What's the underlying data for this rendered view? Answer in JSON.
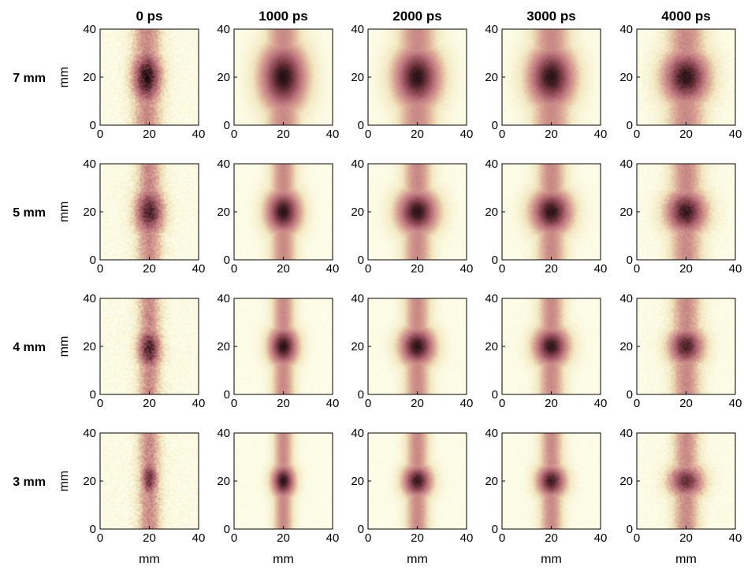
{
  "chart_data": {
    "type": "heatmap",
    "column_titles": [
      "0 ps",
      "1000 ps",
      "2000 ps",
      "3000 ps",
      "4000 ps"
    ],
    "row_labels": [
      "7 mm",
      "5 mm",
      "4 mm",
      "3 mm"
    ],
    "xlabel": "mm",
    "ylabel": "mm",
    "xlim": [
      0,
      40
    ],
    "ylim": [
      0,
      40
    ],
    "xticks": [
      0,
      20,
      40
    ],
    "yticks": [
      0,
      20,
      40
    ],
    "grid": false,
    "colormap": [
      "#fdfde8",
      "#f2e8c0",
      "#d9a593",
      "#b8707a",
      "#7a3b45",
      "#0f0608"
    ],
    "panels": [
      {
        "row": "7 mm",
        "col": "0 ps",
        "center": [
          19,
          20
        ],
        "stripe_width": 4.5,
        "blob_rx": 5,
        "blob_ry": 10,
        "peak": 0.97,
        "noise": 0.18
      },
      {
        "row": "7 mm",
        "col": "1000 ps",
        "center": [
          20,
          20
        ],
        "stripe_width": 5.5,
        "blob_rx": 8,
        "blob_ry": 12,
        "peak": 0.96,
        "noise": 0.03
      },
      {
        "row": "7 mm",
        "col": "2000 ps",
        "center": [
          20,
          20
        ],
        "stripe_width": 6,
        "blob_rx": 8,
        "blob_ry": 11,
        "peak": 0.95,
        "noise": 0.04
      },
      {
        "row": "7 mm",
        "col": "3000 ps",
        "center": [
          20,
          20
        ],
        "stripe_width": 6,
        "blob_rx": 8,
        "blob_ry": 11,
        "peak": 0.95,
        "noise": 0.05
      },
      {
        "row": "7 mm",
        "col": "4000 ps",
        "center": [
          20,
          20
        ],
        "stripe_width": 6,
        "blob_rx": 8,
        "blob_ry": 10,
        "peak": 0.95,
        "noise": 0.09
      },
      {
        "row": "5 mm",
        "col": "0 ps",
        "center": [
          20,
          20
        ],
        "stripe_width": 4,
        "blob_rx": 5,
        "blob_ry": 9,
        "peak": 0.9,
        "noise": 0.18
      },
      {
        "row": "5 mm",
        "col": "1000 ps",
        "center": [
          20,
          20
        ],
        "stripe_width": 4,
        "blob_rx": 6,
        "blob_ry": 8,
        "peak": 0.95,
        "noise": 0.03
      },
      {
        "row": "5 mm",
        "col": "2000 ps",
        "center": [
          20,
          20
        ],
        "stripe_width": 4.5,
        "blob_rx": 7,
        "blob_ry": 8,
        "peak": 0.95,
        "noise": 0.04
      },
      {
        "row": "5 mm",
        "col": "3000 ps",
        "center": [
          20,
          20
        ],
        "stripe_width": 4.5,
        "blob_rx": 7,
        "blob_ry": 8,
        "peak": 0.95,
        "noise": 0.05
      },
      {
        "row": "5 mm",
        "col": "4000 ps",
        "center": [
          20,
          20
        ],
        "stripe_width": 5,
        "blob_rx": 7,
        "blob_ry": 8,
        "peak": 0.93,
        "noise": 0.09
      },
      {
        "row": "4 mm",
        "col": "0 ps",
        "center": [
          20,
          19
        ],
        "stripe_width": 3.5,
        "blob_rx": 4,
        "blob_ry": 8,
        "peak": 0.9,
        "noise": 0.2
      },
      {
        "row": "4 mm",
        "col": "1000 ps",
        "center": [
          20,
          20
        ],
        "stripe_width": 3.5,
        "blob_rx": 5,
        "blob_ry": 7,
        "peak": 0.95,
        "noise": 0.03
      },
      {
        "row": "4 mm",
        "col": "2000 ps",
        "center": [
          20,
          20
        ],
        "stripe_width": 4,
        "blob_rx": 6,
        "blob_ry": 7,
        "peak": 0.95,
        "noise": 0.04
      },
      {
        "row": "4 mm",
        "col": "3000 ps",
        "center": [
          20,
          20
        ],
        "stripe_width": 4,
        "blob_rx": 6,
        "blob_ry": 7,
        "peak": 0.94,
        "noise": 0.05
      },
      {
        "row": "4 mm",
        "col": "4000 ps",
        "center": [
          20,
          20
        ],
        "stripe_width": 4.5,
        "blob_rx": 6,
        "blob_ry": 7,
        "peak": 0.9,
        "noise": 0.1
      },
      {
        "row": "3 mm",
        "col": "0 ps",
        "center": [
          20,
          21
        ],
        "stripe_width": 3.5,
        "blob_rx": 3,
        "blob_ry": 7,
        "peak": 0.85,
        "noise": 0.2
      },
      {
        "row": "3 mm",
        "col": "1000 ps",
        "center": [
          20,
          20
        ],
        "stripe_width": 3,
        "blob_rx": 4,
        "blob_ry": 6,
        "peak": 0.95,
        "noise": 0.03
      },
      {
        "row": "3 mm",
        "col": "2000 ps",
        "center": [
          20,
          20
        ],
        "stripe_width": 3.5,
        "blob_rx": 5,
        "blob_ry": 6,
        "peak": 0.93,
        "noise": 0.05
      },
      {
        "row": "3 mm",
        "col": "3000 ps",
        "center": [
          20,
          20
        ],
        "stripe_width": 3.5,
        "blob_rx": 5,
        "blob_ry": 6,
        "peak": 0.92,
        "noise": 0.06
      },
      {
        "row": "3 mm",
        "col": "4000 ps",
        "center": [
          20,
          20
        ],
        "stripe_width": 4,
        "blob_rx": 6,
        "blob_ry": 6,
        "peak": 0.85,
        "noise": 0.12
      }
    ]
  }
}
